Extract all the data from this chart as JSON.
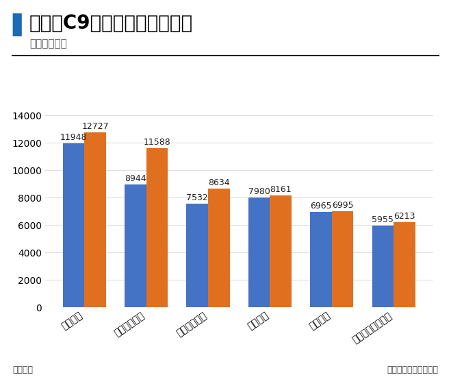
{
  "title": "近两年C9高校毕业生人数变化",
  "subtitle": "（部分高校）",
  "categories": [
    "浙江大学",
    "上海交通大学",
    "西安交通大学",
    "南京大学",
    "清华大学",
    "中国科学技术大学"
  ],
  "values_2019": [
    11948,
    8944,
    7532,
    7980,
    6965,
    5955
  ],
  "values_2020": [
    12727,
    11588,
    8634,
    8161,
    6995,
    6213
  ],
  "color_2019": "#4472C4",
  "color_2020": "#E07020",
  "ylabel_left": "单位：人",
  "ylabel_right": "数据来源：各学校官网",
  "ylim": [
    0,
    14000
  ],
  "yticks": [
    0,
    2000,
    4000,
    6000,
    8000,
    10000,
    12000,
    14000
  ],
  "bar_width": 0.35,
  "title_fontsize": 20,
  "subtitle_fontsize": 11,
  "tick_fontsize": 10,
  "label_fontsize": 9,
  "legend_fontsize": 10,
  "footer_fontsize": 9,
  "title_color": "#000000",
  "subtitle_color": "#555555",
  "bg_color": "#FFFFFF",
  "grid_color": "#DDDDDD",
  "title_bar_color": "#1A6AB5"
}
